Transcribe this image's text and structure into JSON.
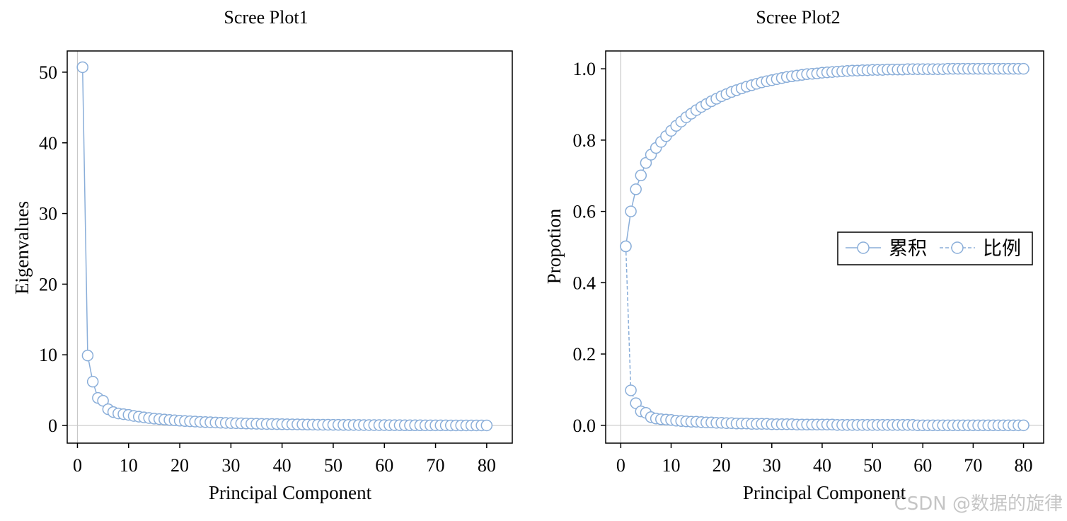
{
  "chart_data": [
    {
      "type": "line",
      "title": "Scree Plot1",
      "xlabel": "Principal Component",
      "ylabel": "Eigenvalues",
      "xlim": [
        -2,
        85
      ],
      "ylim": [
        -2.5,
        53
      ],
      "xticks": [
        0,
        10,
        20,
        30,
        40,
        50,
        60,
        70,
        80
      ],
      "yticks": [
        0,
        10,
        20,
        30,
        40,
        50
      ],
      "grid": false,
      "zero_lines": true,
      "color": "#8aaed9",
      "series": [
        {
          "name": "Eigenvalues",
          "x": [
            1,
            2,
            3,
            4,
            5,
            6,
            7,
            8,
            9,
            10,
            11,
            12,
            13,
            14,
            15,
            16,
            17,
            18,
            19,
            20,
            21,
            22,
            23,
            24,
            25,
            26,
            27,
            28,
            29,
            30,
            31,
            32,
            33,
            34,
            35,
            36,
            37,
            38,
            39,
            40,
            41,
            42,
            43,
            44,
            45,
            46,
            47,
            48,
            49,
            50,
            51,
            52,
            53,
            54,
            55,
            56,
            57,
            58,
            59,
            60,
            61,
            62,
            63,
            64,
            65,
            66,
            67,
            68,
            69,
            70,
            71,
            72,
            73,
            74,
            75,
            76,
            77,
            78,
            79,
            80
          ],
          "values": [
            50.7,
            9.9,
            6.2,
            3.9,
            3.5,
            2.3,
            1.9,
            1.7,
            1.6,
            1.5,
            1.35,
            1.25,
            1.15,
            1.05,
            0.97,
            0.9,
            0.84,
            0.78,
            0.73,
            0.68,
            0.63,
            0.59,
            0.55,
            0.51,
            0.48,
            0.45,
            0.42,
            0.39,
            0.36,
            0.34,
            0.32,
            0.3,
            0.28,
            0.26,
            0.24,
            0.22,
            0.21,
            0.2,
            0.19,
            0.18,
            0.17,
            0.16,
            0.15,
            0.14,
            0.13,
            0.12,
            0.11,
            0.1,
            0.1,
            0.09,
            0.09,
            0.08,
            0.08,
            0.07,
            0.07,
            0.06,
            0.06,
            0.05,
            0.05,
            0.05,
            0.04,
            0.04,
            0.04,
            0.03,
            0.03,
            0.03,
            0.03,
            0.02,
            0.02,
            0.02,
            0.02,
            0.02,
            0.01,
            0.01,
            0.01,
            0.01,
            0.01,
            0.01,
            0.01,
            0.01
          ]
        }
      ]
    },
    {
      "type": "line",
      "title": "Scree Plot2",
      "xlabel": "Principal Component",
      "ylabel": "Propotion",
      "xlim": [
        -3,
        84
      ],
      "ylim": [
        -0.05,
        1.05
      ],
      "xticks": [
        0,
        10,
        20,
        30,
        40,
        50,
        60,
        70,
        80
      ],
      "yticks": [
        0.0,
        0.2,
        0.4,
        0.6,
        0.8,
        1.0
      ],
      "ytick_labels": [
        "0.0",
        "0.2",
        "0.4",
        "0.6",
        "0.8",
        "1.0"
      ],
      "grid": false,
      "zero_lines": true,
      "color": "#8aaed9",
      "legend": {
        "position": "right-center",
        "entries": [
          "累积",
          "比例"
        ]
      },
      "series": [
        {
          "name": "累积",
          "line_style": "solid",
          "x": [
            1,
            2,
            3,
            4,
            5,
            6,
            7,
            8,
            9,
            10,
            11,
            12,
            13,
            14,
            15,
            16,
            17,
            18,
            19,
            20,
            21,
            22,
            23,
            24,
            25,
            26,
            27,
            28,
            29,
            30,
            31,
            32,
            33,
            34,
            35,
            36,
            37,
            38,
            39,
            40,
            41,
            42,
            43,
            44,
            45,
            46,
            47,
            48,
            49,
            50,
            51,
            52,
            53,
            54,
            55,
            56,
            57,
            58,
            59,
            60,
            61,
            62,
            63,
            64,
            65,
            66,
            67,
            68,
            69,
            70,
            71,
            72,
            73,
            74,
            75,
            76,
            77,
            78,
            79,
            80
          ],
          "values": [
            0.502,
            0.6,
            0.662,
            0.701,
            0.736,
            0.759,
            0.778,
            0.795,
            0.811,
            0.826,
            0.84,
            0.852,
            0.864,
            0.874,
            0.884,
            0.893,
            0.901,
            0.909,
            0.916,
            0.923,
            0.929,
            0.935,
            0.94,
            0.945,
            0.95,
            0.954,
            0.958,
            0.962,
            0.965,
            0.968,
            0.971,
            0.974,
            0.977,
            0.979,
            0.981,
            0.983,
            0.985,
            0.986,
            0.987,
            0.989,
            0.99,
            0.991,
            0.992,
            0.993,
            0.994,
            0.995,
            0.995,
            0.996,
            0.996,
            0.997,
            0.997,
            0.997,
            0.998,
            0.998,
            0.998,
            0.998,
            0.999,
            0.999,
            0.999,
            0.999,
            0.999,
            0.999,
            0.999,
            0.999,
            1.0,
            1.0,
            1.0,
            1.0,
            1.0,
            1.0,
            1.0,
            1.0,
            1.0,
            1.0,
            1.0,
            1.0,
            1.0,
            1.0,
            1.0,
            1.0
          ]
        },
        {
          "name": "比例",
          "line_style": "dashed",
          "x": [
            1,
            2,
            3,
            4,
            5,
            6,
            7,
            8,
            9,
            10,
            11,
            12,
            13,
            14,
            15,
            16,
            17,
            18,
            19,
            20,
            21,
            22,
            23,
            24,
            25,
            26,
            27,
            28,
            29,
            30,
            31,
            32,
            33,
            34,
            35,
            36,
            37,
            38,
            39,
            40,
            41,
            42,
            43,
            44,
            45,
            46,
            47,
            48,
            49,
            50,
            51,
            52,
            53,
            54,
            55,
            56,
            57,
            58,
            59,
            60,
            61,
            62,
            63,
            64,
            65,
            66,
            67,
            68,
            69,
            70,
            71,
            72,
            73,
            74,
            75,
            76,
            77,
            78,
            79,
            80
          ],
          "values": [
            0.502,
            0.098,
            0.062,
            0.039,
            0.035,
            0.023,
            0.019,
            0.017,
            0.016,
            0.015,
            0.013,
            0.012,
            0.011,
            0.01,
            0.01,
            0.009,
            0.008,
            0.008,
            0.007,
            0.007,
            0.006,
            0.006,
            0.005,
            0.005,
            0.005,
            0.004,
            0.004,
            0.004,
            0.004,
            0.003,
            0.003,
            0.003,
            0.003,
            0.003,
            0.002,
            0.002,
            0.002,
            0.002,
            0.002,
            0.002,
            0.002,
            0.002,
            0.001,
            0.001,
            0.001,
            0.001,
            0.001,
            0.001,
            0.001,
            0.001,
            0.001,
            0.001,
            0.001,
            0.001,
            0.001,
            0.001,
            0.001,
            0.001,
            0.0,
            0.0,
            0.0,
            0.0,
            0.0,
            0.0,
            0.0,
            0.0,
            0.0,
            0.0,
            0.0,
            0.0,
            0.0,
            0.0,
            0.0,
            0.0,
            0.0,
            0.0,
            0.0,
            0.0,
            0.0,
            0.0
          ]
        }
      ]
    }
  ],
  "watermark": "CSDN @数据的旋律"
}
